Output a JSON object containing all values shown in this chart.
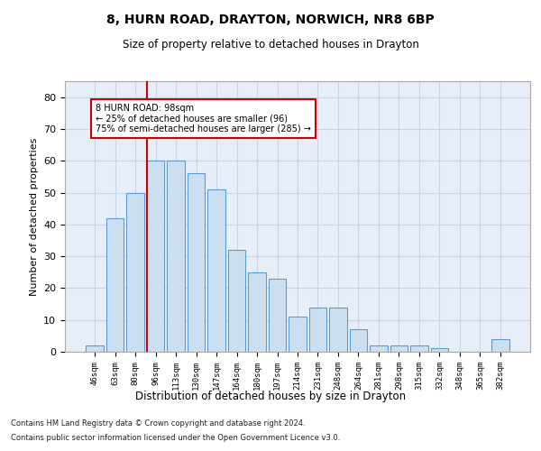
{
  "title1": "8, HURN ROAD, DRAYTON, NORWICH, NR8 6BP",
  "title2": "Size of property relative to detached houses in Drayton",
  "xlabel": "Distribution of detached houses by size in Drayton",
  "ylabel": "Number of detached properties",
  "categories": [
    "46sqm",
    "63sqm",
    "80sqm",
    "96sqm",
    "113sqm",
    "130sqm",
    "147sqm",
    "164sqm",
    "180sqm",
    "197sqm",
    "214sqm",
    "231sqm",
    "248sqm",
    "264sqm",
    "281sqm",
    "298sqm",
    "315sqm",
    "332sqm",
    "348sqm",
    "365sqm",
    "382sqm"
  ],
  "values": [
    2,
    42,
    50,
    60,
    60,
    56,
    51,
    32,
    25,
    23,
    11,
    14,
    14,
    7,
    2,
    2,
    2,
    1,
    0,
    0,
    4
  ],
  "bar_color": "#ccdff0",
  "bar_edge_color": "#5b9bd5",
  "red_line_x": 3,
  "red_line_color": "#cc0000",
  "annotation_text": "8 HURN ROAD: 98sqm\n← 25% of detached houses are smaller (96)\n75% of semi-detached houses are larger (285) →",
  "annotation_box_color": "white",
  "annotation_box_edge_color": "#cc0000",
  "ylim": [
    0,
    85
  ],
  "yticks": [
    0,
    10,
    20,
    30,
    40,
    50,
    60,
    70,
    80
  ],
  "grid_color": "#c8d4e8",
  "background_color": "#e8eef8",
  "footnote1": "Contains HM Land Registry data © Crown copyright and database right 2024.",
  "footnote2": "Contains public sector information licensed under the Open Government Licence v3.0."
}
